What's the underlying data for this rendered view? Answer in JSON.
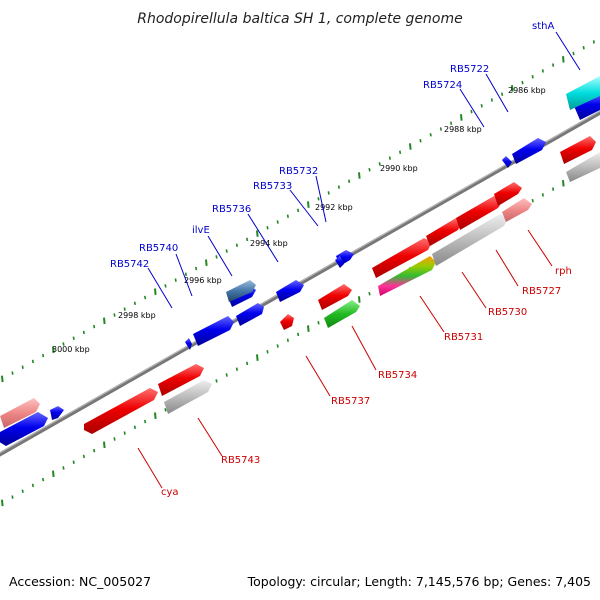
{
  "title": "Rhodopirellula baltica SH 1, complete genome",
  "footer": {
    "accession": "Accession: NC_005027",
    "summary": "Topology: circular; Length: 7,145,576 bp; Genes: 7,405"
  },
  "colors": {
    "forward_label": "#0000cc",
    "reverse_label": "#cc0000",
    "backbone": "#777777",
    "ticks": "#228822"
  },
  "ruler": [
    "2986 kbp",
    "2988 kbp",
    "2990 kbp",
    "2992 kbp",
    "2994 kbp",
    "2996 kbp",
    "2998 kbp",
    "3000 kbp"
  ],
  "forward_genes": [
    "sthA",
    "RB5722",
    "RB5724",
    "RB5732",
    "RB5733",
    "RB5736",
    "ilvE",
    "RB5740",
    "RB5742"
  ],
  "reverse_genes": [
    "rph",
    "RB5727",
    "RB5730",
    "RB5731",
    "RB5734",
    "RB5737",
    "RB5743",
    "cya"
  ]
}
